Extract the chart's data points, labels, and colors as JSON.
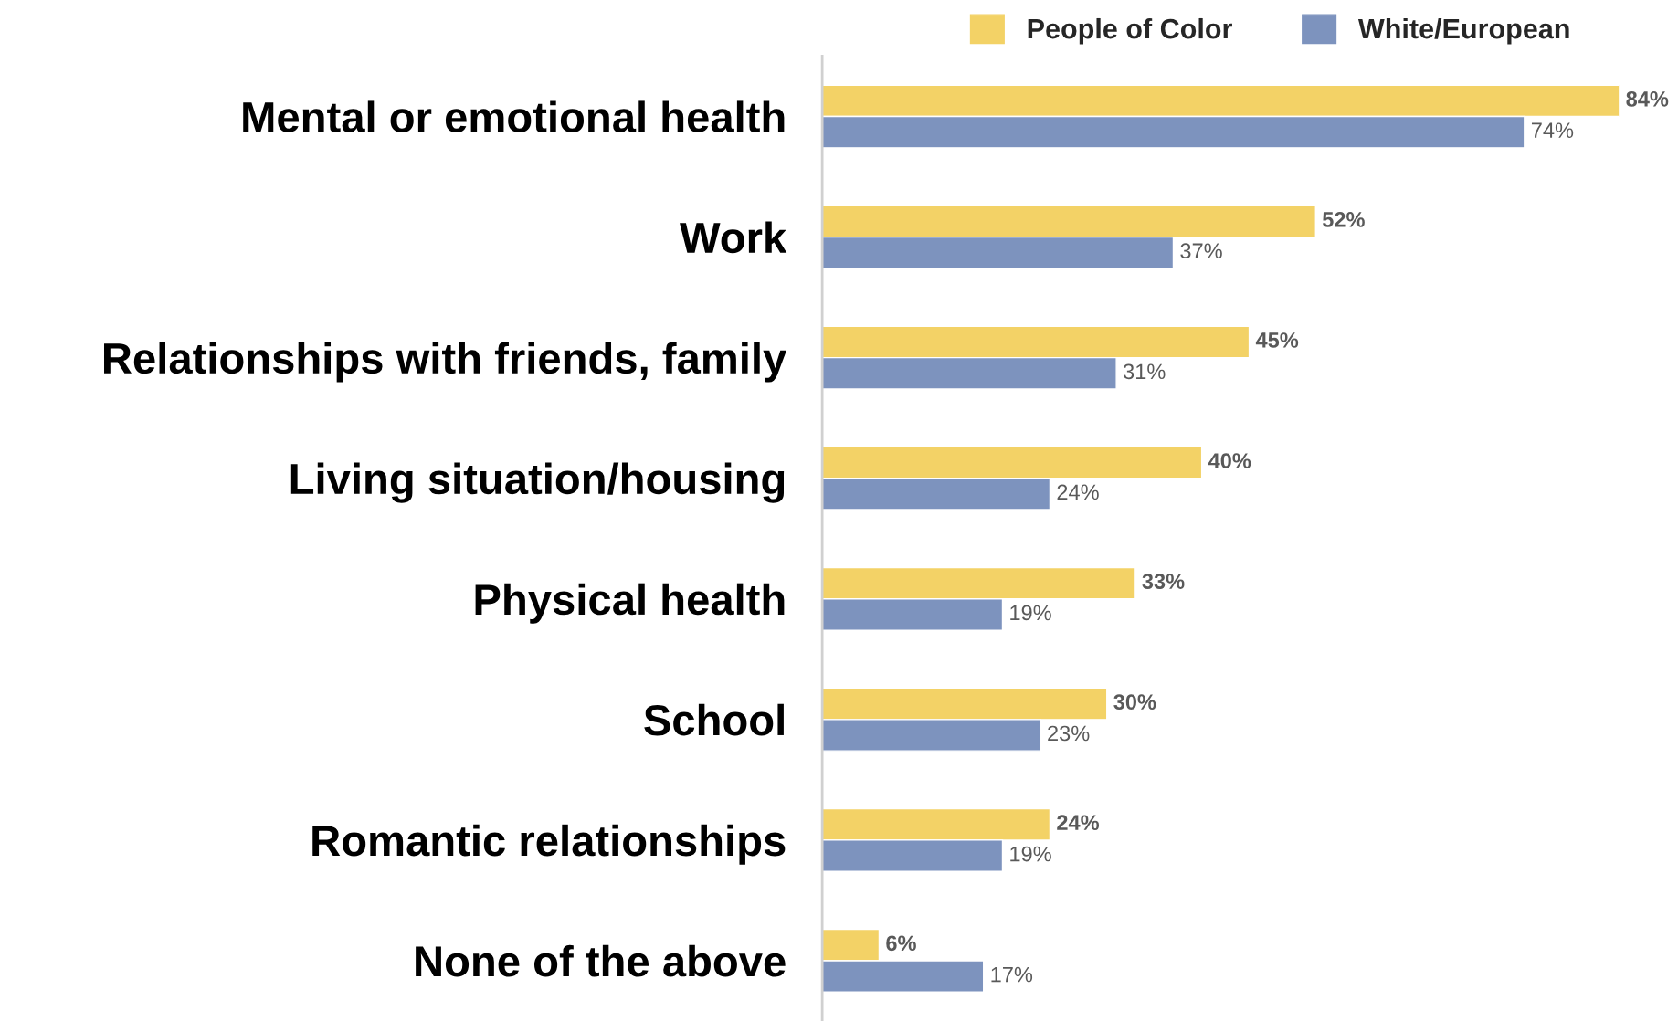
{
  "chart_data": {
    "type": "bar",
    "orientation": "horizontal",
    "legend": "top right",
    "categories": [
      "Mental or emotional health",
      "Work",
      "Relationships with friends, family",
      "Living situation/housing",
      "Physical health",
      "School",
      "Romantic relationships",
      "None of the above"
    ],
    "series": [
      {
        "name": "People of Color",
        "color": "#f3d266",
        "values": [
          84,
          52,
          45,
          40,
          33,
          30,
          24,
          6
        ],
        "value_labels": [
          "84%",
          "52%",
          "45%",
          "40%",
          "33%",
          "30%",
          "24%",
          "6%"
        ]
      },
      {
        "name": "White/European",
        "color": "#7d93be",
        "values": [
          74,
          37,
          31,
          24,
          19,
          23,
          19,
          17
        ],
        "value_labels": [
          "74%",
          "37%",
          "31%",
          "24%",
          "19%",
          "23%",
          "19%",
          "17%"
        ]
      }
    ]
  }
}
